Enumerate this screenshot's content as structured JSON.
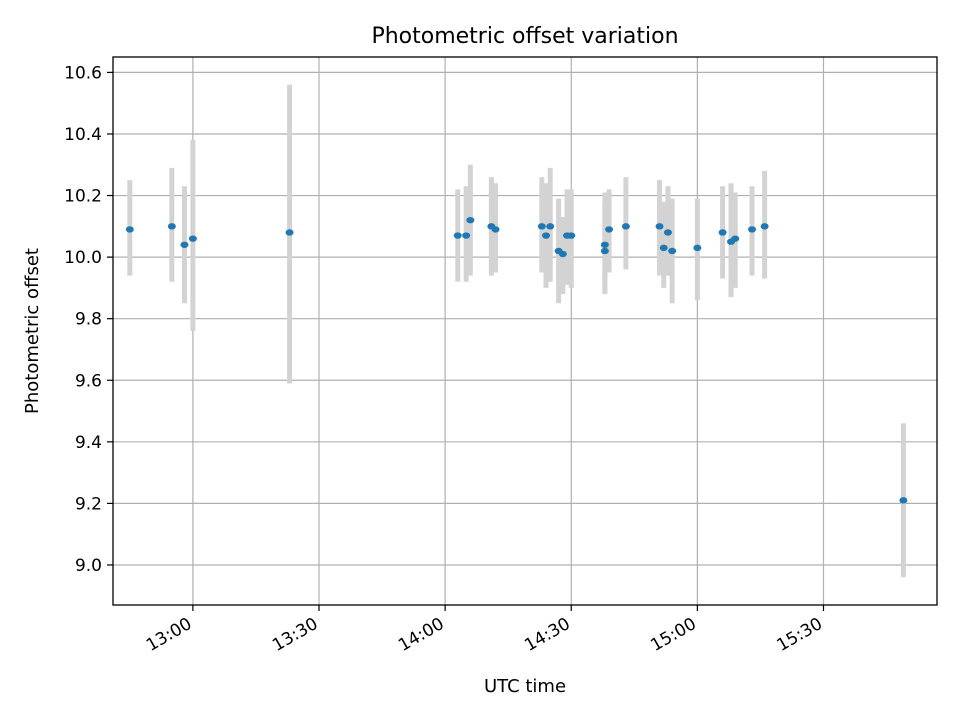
{
  "chart_data": {
    "type": "scatter",
    "title": "Photometric offset variation",
    "xlabel": "UTC time",
    "ylabel": "Photometric offset",
    "x_axis_type": "time",
    "xlim": [
      "12:41",
      "15:57"
    ],
    "ylim": [
      8.87,
      10.65
    ],
    "grid": true,
    "colors": {
      "marker": "#1f77b4",
      "errorbar": "#d3d3d3",
      "grid": "#b0b0b0"
    },
    "xticks": [
      "13:00",
      "13:30",
      "14:00",
      "14:30",
      "15:00",
      "15:30"
    ],
    "yticks": [
      "9.0",
      "9.2",
      "9.4",
      "9.6",
      "9.8",
      "10.0",
      "10.2",
      "10.4",
      "10.6"
    ],
    "points": [
      {
        "x": "12:45",
        "y": 10.09,
        "lo": 9.94,
        "hi": 10.25
      },
      {
        "x": "12:55",
        "y": 10.1,
        "lo": 9.92,
        "hi": 10.29
      },
      {
        "x": "12:58",
        "y": 10.04,
        "lo": 9.85,
        "hi": 10.23
      },
      {
        "x": "13:00",
        "y": 10.06,
        "lo": 9.76,
        "hi": 10.38
      },
      {
        "x": "13:23",
        "y": 10.08,
        "lo": 9.59,
        "hi": 10.56
      },
      {
        "x": "14:03",
        "y": 10.07,
        "lo": 9.92,
        "hi": 10.22
      },
      {
        "x": "14:05",
        "y": 10.07,
        "lo": 9.92,
        "hi": 10.23
      },
      {
        "x": "14:06",
        "y": 10.12,
        "lo": 9.94,
        "hi": 10.3
      },
      {
        "x": "14:11",
        "y": 10.1,
        "lo": 9.94,
        "hi": 10.26
      },
      {
        "x": "14:12",
        "y": 10.09,
        "lo": 9.95,
        "hi": 10.24
      },
      {
        "x": "14:23",
        "y": 10.1,
        "lo": 9.95,
        "hi": 10.26
      },
      {
        "x": "14:24",
        "y": 10.07,
        "lo": 9.9,
        "hi": 10.24
      },
      {
        "x": "14:25",
        "y": 10.1,
        "lo": 9.92,
        "hi": 10.29
      },
      {
        "x": "14:27",
        "y": 10.02,
        "lo": 9.85,
        "hi": 10.19
      },
      {
        "x": "14:28",
        "y": 10.01,
        "lo": 9.88,
        "hi": 10.13
      },
      {
        "x": "14:29",
        "y": 10.07,
        "lo": 9.91,
        "hi": 10.22
      },
      {
        "x": "14:30",
        "y": 10.07,
        "lo": 9.9,
        "hi": 10.22
      },
      {
        "x": "14:38",
        "y": 10.04,
        "lo": 9.88,
        "hi": 10.21
      },
      {
        "x": "14:38",
        "y": 10.02,
        "lo": 9.88,
        "hi": 10.17
      },
      {
        "x": "14:39",
        "y": 10.09,
        "lo": 9.95,
        "hi": 10.22
      },
      {
        "x": "14:43",
        "y": 10.1,
        "lo": 9.96,
        "hi": 10.26
      },
      {
        "x": "14:51",
        "y": 10.1,
        "lo": 9.94,
        "hi": 10.25
      },
      {
        "x": "14:52",
        "y": 10.03,
        "lo": 9.9,
        "hi": 10.18
      },
      {
        "x": "14:53",
        "y": 10.08,
        "lo": 9.94,
        "hi": 10.23
      },
      {
        "x": "14:54",
        "y": 10.02,
        "lo": 9.85,
        "hi": 10.19
      },
      {
        "x": "15:00",
        "y": 10.03,
        "lo": 9.86,
        "hi": 10.19
      },
      {
        "x": "15:06",
        "y": 10.08,
        "lo": 9.93,
        "hi": 10.23
      },
      {
        "x": "15:08",
        "y": 10.05,
        "lo": 9.87,
        "hi": 10.24
      },
      {
        "x": "15:09",
        "y": 10.06,
        "lo": 9.9,
        "hi": 10.21
      },
      {
        "x": "15:13",
        "y": 10.09,
        "lo": 9.94,
        "hi": 10.23
      },
      {
        "x": "15:16",
        "y": 10.1,
        "lo": 9.93,
        "hi": 10.28
      },
      {
        "x": "15:49",
        "y": 9.21,
        "lo": 8.96,
        "hi": 9.46
      }
    ]
  }
}
